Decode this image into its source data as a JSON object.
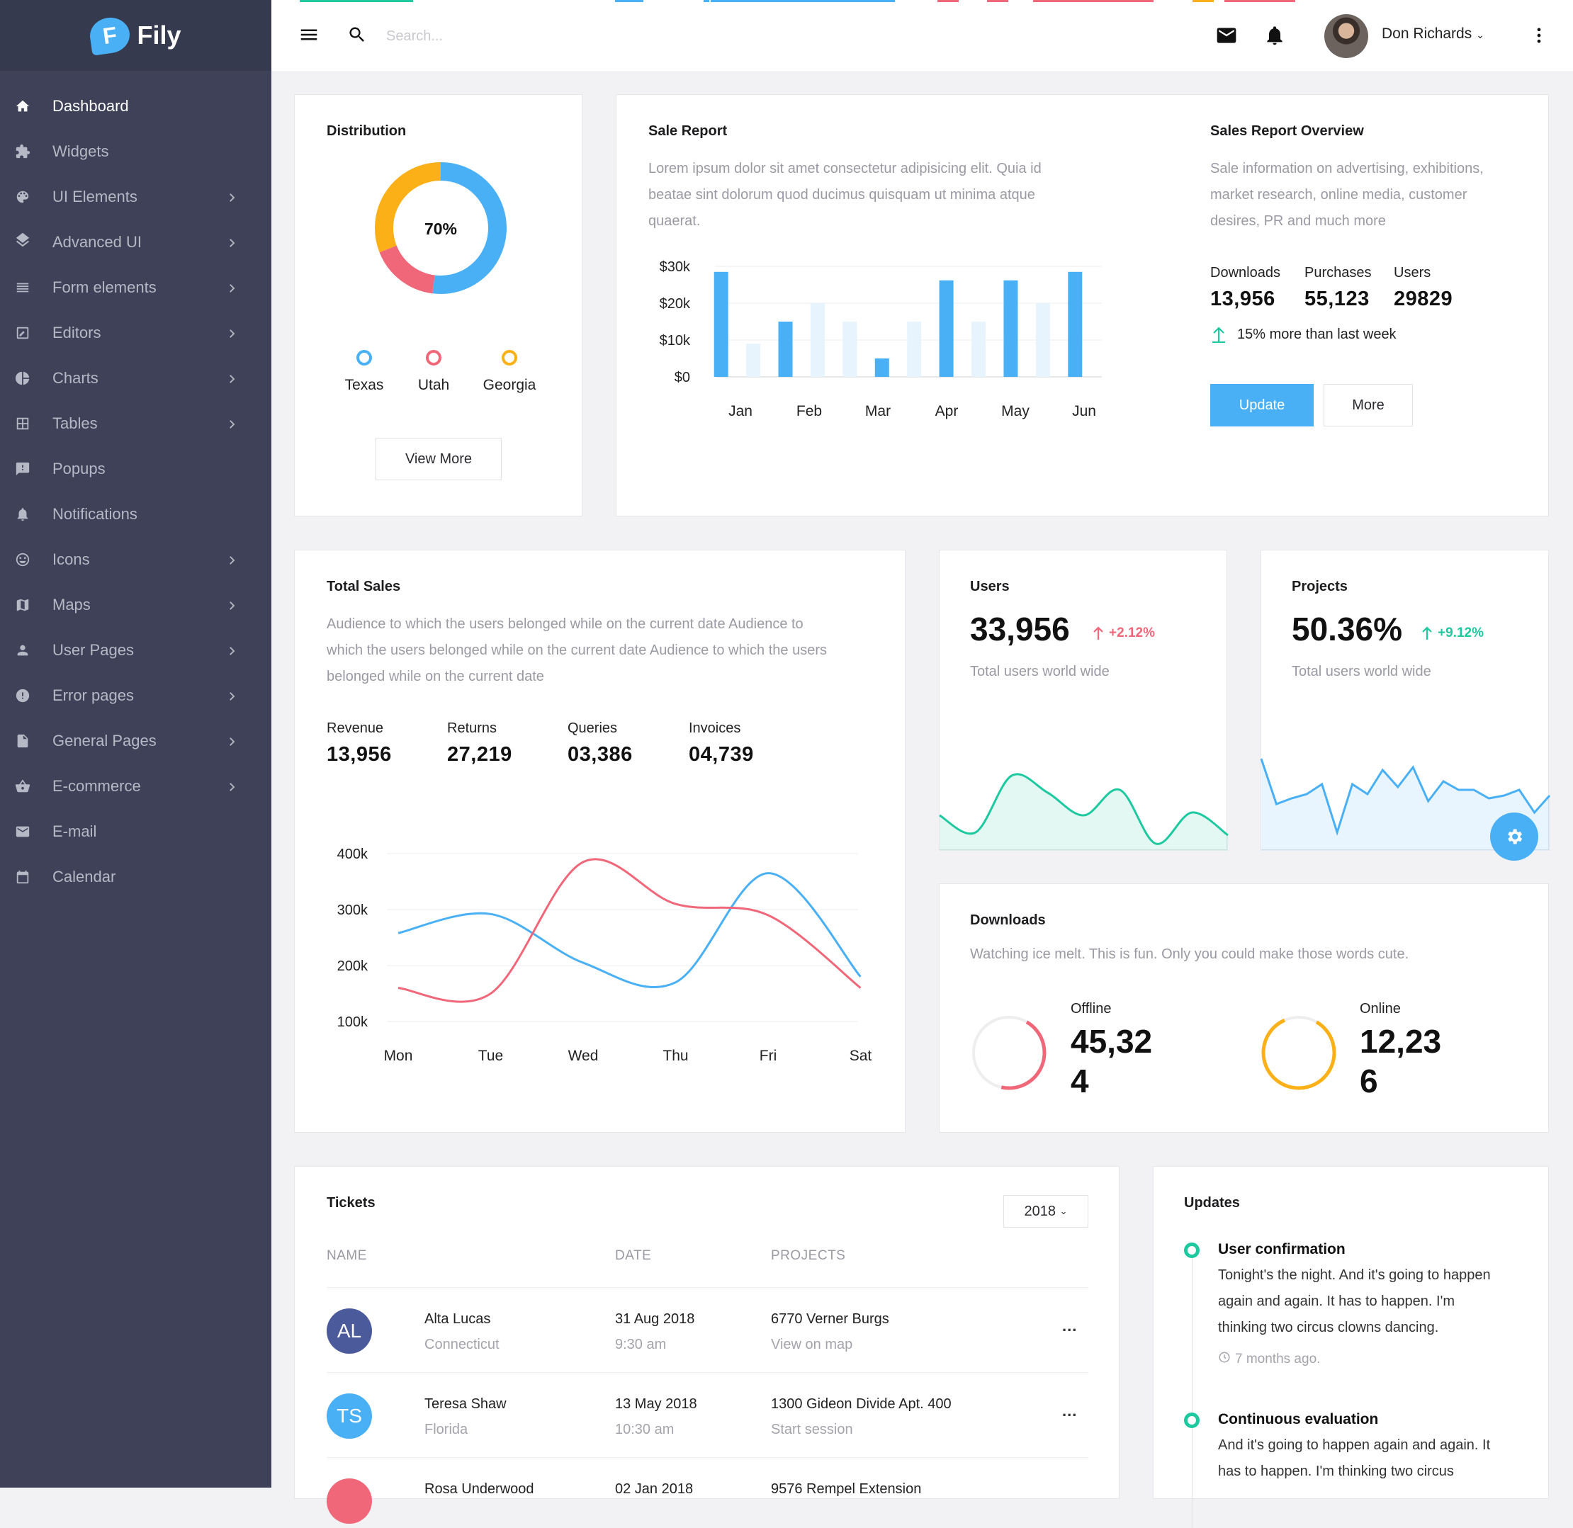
{
  "app": {
    "name": "Fily",
    "logo_letter": "F"
  },
  "sidebar": {
    "items": [
      {
        "label": "Dashboard",
        "icon": "home-icon",
        "active": true,
        "has_children": false
      },
      {
        "label": "Widgets",
        "icon": "puzzle-icon",
        "active": false,
        "has_children": false
      },
      {
        "label": "UI Elements",
        "icon": "palette-icon",
        "active": false,
        "has_children": true
      },
      {
        "label": "Advanced UI",
        "icon": "layers-icon",
        "active": false,
        "has_children": true
      },
      {
        "label": "Form elements",
        "icon": "list-icon",
        "active": false,
        "has_children": true
      },
      {
        "label": "Editors",
        "icon": "edit-icon",
        "active": false,
        "has_children": true
      },
      {
        "label": "Charts",
        "icon": "pie-chart-icon",
        "active": false,
        "has_children": true
      },
      {
        "label": "Tables",
        "icon": "grid-icon",
        "active": false,
        "has_children": true
      },
      {
        "label": "Popups",
        "icon": "message-icon",
        "active": false,
        "has_children": false
      },
      {
        "label": "Notifications",
        "icon": "bell-icon",
        "active": false,
        "has_children": false
      },
      {
        "label": "Icons",
        "icon": "smile-icon",
        "active": false,
        "has_children": true
      },
      {
        "label": "Maps",
        "icon": "map-icon",
        "active": false,
        "has_children": true
      },
      {
        "label": "User Pages",
        "icon": "user-icon",
        "active": false,
        "has_children": true
      },
      {
        "label": "Error pages",
        "icon": "alert-icon",
        "active": false,
        "has_children": true
      },
      {
        "label": "General Pages",
        "icon": "file-icon",
        "active": false,
        "has_children": true
      },
      {
        "label": "E-commerce",
        "icon": "basket-icon",
        "active": false,
        "has_children": true
      },
      {
        "label": "E-mail",
        "icon": "mail-icon",
        "active": false,
        "has_children": false
      },
      {
        "label": "Calendar",
        "icon": "calendar-icon",
        "active": false,
        "has_children": false
      }
    ]
  },
  "topbar": {
    "search_placeholder": "Search...",
    "user_name": "Don Richards"
  },
  "distribution": {
    "title": "Distribution",
    "center_label": "70%",
    "legend": [
      {
        "label": "Texas",
        "color": "#4ab0f5"
      },
      {
        "label": "Utah",
        "color": "#f0677a"
      },
      {
        "label": "Georgia",
        "color": "#fbb017"
      }
    ],
    "button": "View More"
  },
  "sale_report": {
    "title": "Sale Report",
    "description_lines": [
      "Lorem ipsum dolor sit amet consectetur adipisicing elit. Quia id",
      "beatae sint dolorum quod ducimus quisquam ut minima atque",
      "quaerat."
    ]
  },
  "overview": {
    "title": "Sales Report Overview",
    "description_lines": [
      "Sale information on advertising, exhibitions,",
      "market research, online media, customer",
      "desires, PR and much more"
    ],
    "stats": [
      {
        "label": "Downloads",
        "value": "13,956"
      },
      {
        "label": "Purchases",
        "value": "55,123"
      },
      {
        "label": "Users",
        "value": "29829"
      }
    ],
    "trend_text": "15% more than last week",
    "update_button": "Update",
    "more_button": "More"
  },
  "total_sales": {
    "title": "Total Sales",
    "description_lines": [
      "Audience to which the users belonged while on the current date Audience to",
      "which the users belonged while on the current date Audience to which the users",
      "belonged while on the current date"
    ],
    "stats": [
      {
        "label": "Revenue",
        "value": "13,956"
      },
      {
        "label": "Returns",
        "value": "27,219"
      },
      {
        "label": "Queries",
        "value": "03,386"
      },
      {
        "label": "Invoices",
        "value": "04,739"
      }
    ]
  },
  "users_card": {
    "title": "Users",
    "value": "33,956",
    "delta": "+2.12%",
    "subtitle": "Total users world wide"
  },
  "projects_card": {
    "title": "Projects",
    "value": "50.36%",
    "delta": "+9.12%",
    "subtitle": "Total users world wide"
  },
  "downloads": {
    "title": "Downloads",
    "description": "Watching ice melt. This is fun. Only you could make those words cute.",
    "offline": {
      "label": "Offline",
      "value_line1": "45,32",
      "value_line2": "4"
    },
    "online": {
      "label": "Online",
      "value_line1": "12,23",
      "value_line2": "6"
    }
  },
  "tickets": {
    "title": "Tickets",
    "year": "2018",
    "columns": [
      "NAME",
      "DATE",
      "PROJECTS"
    ],
    "rows": [
      {
        "initials": "AL",
        "color": "#4b5a9a",
        "name": "Alta Lucas",
        "location": "Connecticut",
        "date": "31 Aug 2018",
        "time": "9:30 am",
        "project": "6770 Verner Burgs",
        "project_sub": "View on map",
        "menu": "..."
      },
      {
        "initials": "TS",
        "color": "#4ab0f5",
        "name": "Teresa Shaw",
        "location": "Florida",
        "date": "13 May 2018",
        "time": "10:30 am",
        "project": "1300 Gideon Divide Apt. 400",
        "project_sub": "Start session",
        "menu": "..."
      },
      {
        "initials": "",
        "color": "#f0677a",
        "name": "Rosa Underwood",
        "location": "",
        "date": "02 Jan 2018",
        "time": "",
        "project": "9576 Rempel Extension",
        "project_sub": "",
        "menu": ""
      }
    ]
  },
  "updates": {
    "title": "Updates",
    "items": [
      {
        "title": "User confirmation",
        "text_lines": [
          "Tonight's the night. And it's going to happen",
          "again and again. It has to happen. I'm",
          "thinking two circus clowns dancing."
        ],
        "time": "7 months ago."
      },
      {
        "title": "Continuous evaluation",
        "text_lines": [
          "And it's going to happen again and again. It",
          "has to happen. I'm thinking two circus"
        ],
        "time": ""
      }
    ]
  },
  "chart_data": [
    {
      "type": "pie",
      "title": "Distribution",
      "categories": [
        "Texas",
        "Utah",
        "Georgia"
      ],
      "values": [
        52,
        17,
        31
      ],
      "colors": [
        "#4ab0f5",
        "#f0677a",
        "#fbb017"
      ]
    },
    {
      "type": "bar",
      "title": "Sale Report",
      "categories": [
        "Jan",
        "",
        "Feb",
        "",
        "",
        "Mar",
        "",
        "Apr",
        "",
        "May",
        "",
        "Jun"
      ],
      "x_ticks": [
        "Jan",
        "Feb",
        "Mar",
        "Apr",
        "May",
        "Jun"
      ],
      "series": [
        {
          "name": "primary",
          "color": "#4ab0f5",
          "values": [
            28500,
            0,
            15000,
            0,
            0,
            5000,
            0,
            26200,
            0,
            26200,
            0,
            28500
          ]
        },
        {
          "name": "secondary",
          "color": "#e8f4fd",
          "values": [
            0,
            9000,
            0,
            20000,
            15000,
            0,
            15000,
            0,
            15000,
            0,
            20000,
            0
          ]
        }
      ],
      "y_ticks": [
        "$0",
        "$10k",
        "$20k",
        "$30k"
      ],
      "ylim": [
        0,
        30000
      ]
    },
    {
      "type": "line",
      "title": "Total Sales",
      "categories": [
        "Mon",
        "Tue",
        "Wed",
        "Thu",
        "Fri",
        "Sat"
      ],
      "y_ticks": [
        "100k",
        "200k",
        "300k",
        "400k"
      ],
      "ylim": [
        100000,
        400000
      ],
      "series": [
        {
          "name": "blue",
          "color": "#4ab0f5",
          "values": [
            258000,
            292000,
            205000,
            170000,
            365000,
            180000
          ]
        },
        {
          "name": "red",
          "color": "#f0677a",
          "values": [
            160000,
            150000,
            385000,
            310000,
            290000,
            160000
          ]
        }
      ]
    },
    {
      "type": "area",
      "title": "Users",
      "color": "#1ec9a0",
      "values": [
        30,
        18,
        58,
        46,
        30,
        48,
        10,
        32,
        16
      ]
    },
    {
      "type": "area",
      "title": "Projects",
      "color": "#4ab0f5",
      "values": [
        70,
        38,
        42,
        45,
        52,
        18,
        52,
        45,
        62,
        50,
        64,
        40,
        54,
        48,
        48,
        42,
        44,
        48,
        32,
        44
      ]
    },
    {
      "type": "pie",
      "title": "Offline",
      "values": [
        45,
        55
      ],
      "colors": [
        "#f0677a",
        "#eeeeee"
      ]
    },
    {
      "type": "pie",
      "title": "Online",
      "values": [
        85,
        15
      ],
      "colors": [
        "#fbb017",
        "#eeeeee"
      ]
    }
  ]
}
